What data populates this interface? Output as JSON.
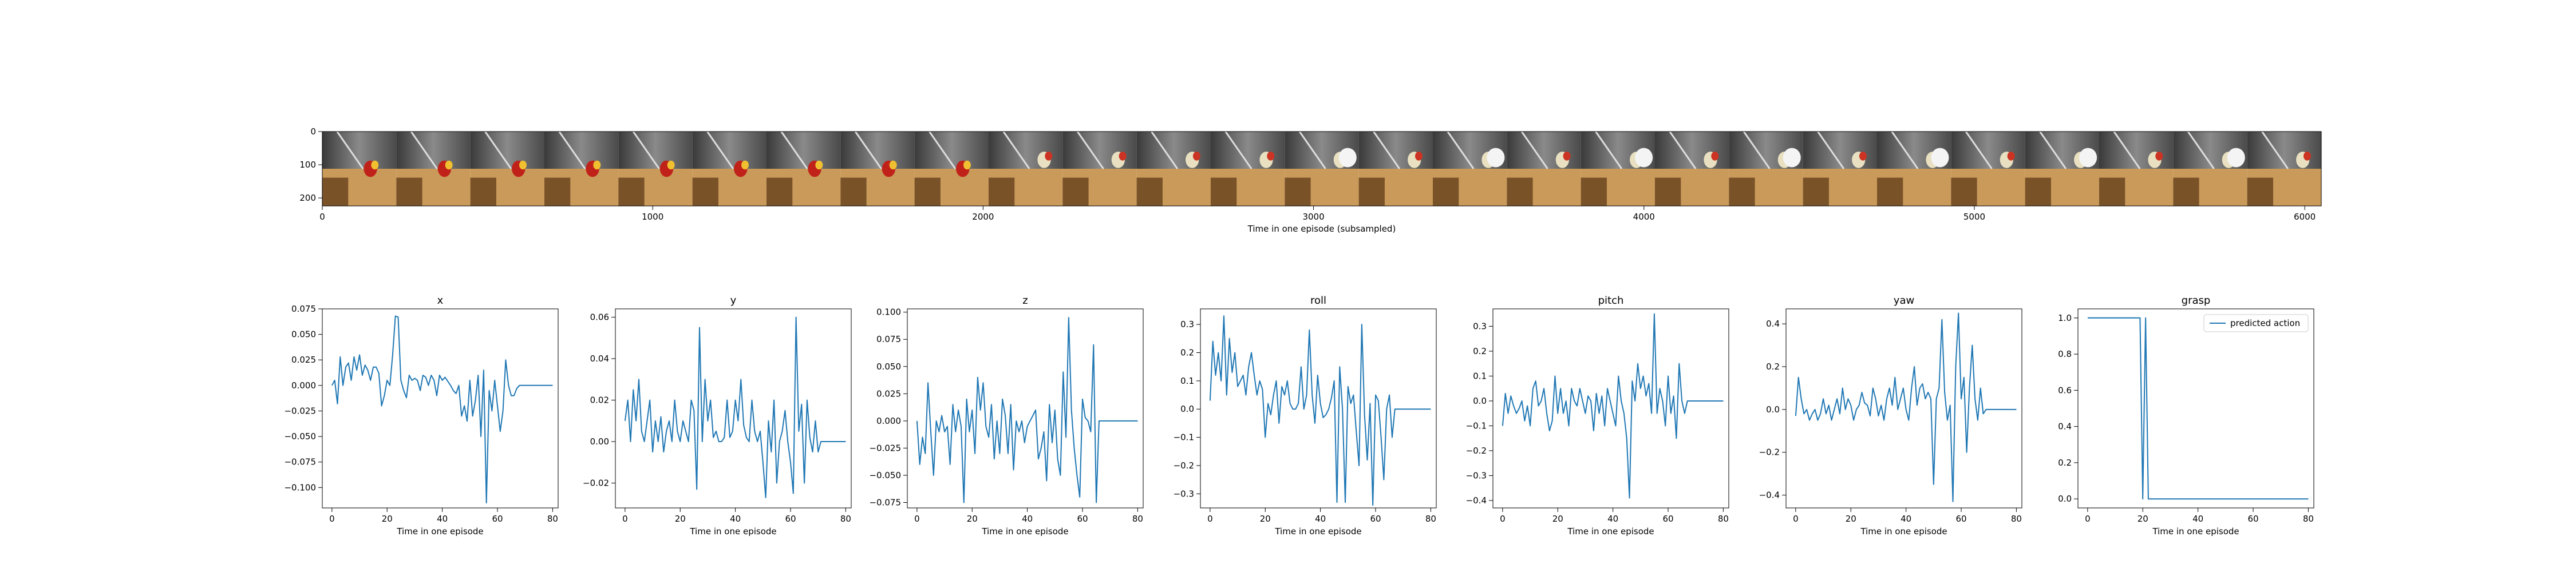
{
  "colors": {
    "line": "#1f77b4",
    "axis": "#000000",
    "background": "#ffffff"
  },
  "image_strip": {
    "xlabel": "Time in one episode (subsampled)",
    "x_ticks": [
      "0",
      "1000",
      "2000",
      "3000",
      "4000",
      "5000",
      "6000"
    ],
    "y_ticks": [
      "0",
      "100",
      "200"
    ],
    "xlim": [
      0,
      6050
    ],
    "ylim": [
      0,
      224
    ],
    "frame_count": 27,
    "frame_icon": "robot-tabletop-frame"
  },
  "chart_data": [
    {
      "type": "line",
      "title": "x",
      "xlabel": "Time in one episode",
      "ylabel": "",
      "xlim": [
        -3.5,
        82
      ],
      "ylim": [
        -0.12,
        0.075
      ],
      "x_ticks": [
        "0",
        "20",
        "40",
        "60",
        "80"
      ],
      "y_ticks": [
        "0.075",
        "0.050",
        "0.025",
        "0.000",
        "−0.025",
        "−0.050",
        "−0.075",
        "−0.100"
      ],
      "y_tick_values": [
        0.075,
        0.05,
        0.025,
        0,
        -0.025,
        -0.05,
        -0.075,
        -0.1
      ],
      "x": [
        0,
        1,
        2,
        3,
        4,
        5,
        6,
        7,
        8,
        9,
        10,
        11,
        12,
        13,
        14,
        15,
        16,
        17,
        18,
        19,
        20,
        21,
        22,
        23,
        24,
        25,
        26,
        27,
        28,
        29,
        30,
        31,
        32,
        33,
        34,
        35,
        36,
        37,
        38,
        39,
        40,
        41,
        42,
        43,
        44,
        45,
        46,
        47,
        48,
        49,
        50,
        51,
        52,
        53,
        54,
        55,
        56,
        57,
        58,
        59,
        60,
        61,
        62,
        63,
        64,
        65,
        66,
        67,
        68,
        69,
        70,
        71,
        72,
        73,
        74,
        75,
        76,
        77,
        78,
        79,
        80
      ],
      "values": [
        0,
        0.005,
        -0.018,
        0.028,
        0,
        0.018,
        0.022,
        0.005,
        0.028,
        0.015,
        0.03,
        0.01,
        0.02,
        0.015,
        0.005,
        0.018,
        0.018,
        0.012,
        -0.02,
        -0.01,
        0.005,
        0,
        0.03,
        0.068,
        0.067,
        0.005,
        -0.005,
        -0.012,
        0.01,
        0.005,
        0.007,
        0.005,
        -0.005,
        0.01,
        0.008,
        0,
        0.01,
        0.005,
        -0.01,
        0.01,
        0.005,
        0.008,
        0.004,
        0,
        -0.005,
        -0.008,
        0,
        -0.03,
        -0.02,
        -0.035,
        0.005,
        -0.03,
        -0.015,
        0.01,
        -0.05,
        0.015,
        -0.115,
        -0.005,
        -0.025,
        0.005,
        -0.02,
        -0.045,
        -0.025,
        0.025,
        0,
        -0.01,
        -0.01,
        -0.003,
        0,
        0,
        0,
        0,
        0,
        0,
        0,
        0,
        0,
        0,
        0,
        0,
        0
      ],
      "legend": null
    },
    {
      "type": "line",
      "title": "y",
      "xlabel": "Time in one episode",
      "ylabel": "",
      "xlim": [
        -3.5,
        82
      ],
      "ylim": [
        -0.032,
        0.064
      ],
      "x_ticks": [
        "0",
        "20",
        "40",
        "60",
        "80"
      ],
      "y_ticks": [
        "0.06",
        "0.04",
        "0.02",
        "0.00",
        "−0.02"
      ],
      "y_tick_values": [
        0.06,
        0.04,
        0.02,
        0,
        -0.02
      ],
      "x": [
        0,
        1,
        2,
        3,
        4,
        5,
        6,
        7,
        8,
        9,
        10,
        11,
        12,
        13,
        14,
        15,
        16,
        17,
        18,
        19,
        20,
        21,
        22,
        23,
        24,
        25,
        26,
        27,
        28,
        29,
        30,
        31,
        32,
        33,
        34,
        35,
        36,
        37,
        38,
        39,
        40,
        41,
        42,
        43,
        44,
        45,
        46,
        47,
        48,
        49,
        50,
        51,
        52,
        53,
        54,
        55,
        56,
        57,
        58,
        59,
        60,
        61,
        62,
        63,
        64,
        65,
        66,
        67,
        68,
        69,
        70,
        71,
        72,
        73,
        74,
        75,
        76,
        77,
        78,
        79,
        80
      ],
      "values": [
        0.01,
        0.02,
        0,
        0.025,
        0.01,
        0.03,
        0.005,
        0,
        0.01,
        0.02,
        -0.005,
        0.01,
        0,
        0.012,
        -0.005,
        0.005,
        0.01,
        0,
        0.02,
        0.005,
        0,
        0.01,
        0.005,
        0,
        0.02,
        0.015,
        -0.023,
        0.055,
        0,
        0.03,
        0.01,
        0.02,
        0.002,
        0.005,
        0,
        0,
        0.002,
        0.02,
        0.002,
        0.005,
        0.02,
        0.01,
        0.03,
        0.008,
        0.002,
        0,
        0.02,
        0.005,
        0,
        0.005,
        -0.01,
        -0.027,
        0.01,
        -0.005,
        0.02,
        -0.02,
        0,
        0.005,
        0.015,
        0,
        -0.01,
        -0.025,
        0.06,
        0.005,
        0.018,
        -0.02,
        0.02,
        0.002,
        -0.005,
        0.01,
        -0.005,
        0,
        0,
        0,
        0,
        0,
        0,
        0,
        0,
        0,
        0
      ],
      "legend": null
    },
    {
      "type": "line",
      "title": "z",
      "xlabel": "Time in one episode",
      "ylabel": "",
      "xlim": [
        -3.5,
        82
      ],
      "ylim": [
        -0.08,
        0.103
      ],
      "x_ticks": [
        "0",
        "20",
        "40",
        "60",
        "80"
      ],
      "y_ticks": [
        "0.100",
        "0.075",
        "0.050",
        "0.025",
        "0.000",
        "−0.025",
        "−0.050",
        "−0.075"
      ],
      "y_tick_values": [
        0.1,
        0.075,
        0.05,
        0.025,
        0,
        -0.025,
        -0.05,
        -0.075
      ],
      "x": [
        0,
        1,
        2,
        3,
        4,
        5,
        6,
        7,
        8,
        9,
        10,
        11,
        12,
        13,
        14,
        15,
        16,
        17,
        18,
        19,
        20,
        21,
        22,
        23,
        24,
        25,
        26,
        27,
        28,
        29,
        30,
        31,
        32,
        33,
        34,
        35,
        36,
        37,
        38,
        39,
        40,
        41,
        42,
        43,
        44,
        45,
        46,
        47,
        48,
        49,
        50,
        51,
        52,
        53,
        54,
        55,
        56,
        57,
        58,
        59,
        60,
        61,
        62,
        63,
        64,
        65,
        66,
        67,
        68,
        69,
        70,
        71,
        72,
        73,
        74,
        75,
        76,
        77,
        78,
        79,
        80
      ],
      "values": [
        0,
        -0.04,
        -0.015,
        -0.03,
        0.035,
        -0.01,
        -0.05,
        0,
        -0.01,
        0.005,
        -0.01,
        -0.005,
        -0.04,
        0.015,
        -0.01,
        0.01,
        -0.005,
        -0.075,
        0.02,
        -0.01,
        0.01,
        -0.03,
        0.04,
        0.01,
        0.035,
        -0.005,
        -0.015,
        0.015,
        -0.035,
        0,
        -0.03,
        0.02,
        0.005,
        -0.03,
        0.015,
        -0.045,
        0,
        -0.01,
        0,
        -0.02,
        -0.005,
        0,
        0.005,
        0.01,
        -0.035,
        -0.025,
        -0.01,
        -0.055,
        0.015,
        -0.02,
        0.01,
        -0.035,
        -0.05,
        0.045,
        -0.015,
        0.095,
        0.01,
        -0.025,
        -0.05,
        -0.07,
        0.02,
        0.003,
        0,
        -0.01,
        0.07,
        -0.075,
        0,
        0,
        0,
        0,
        0,
        0,
        0,
        0,
        0,
        0,
        0,
        0,
        0,
        0,
        0
      ],
      "legend": null
    },
    {
      "type": "line",
      "title": "roll",
      "xlabel": "Time in one episode",
      "ylabel": "",
      "xlim": [
        -3.5,
        82
      ],
      "ylim": [
        -0.35,
        0.355
      ],
      "x_ticks": [
        "0",
        "20",
        "40",
        "60",
        "80"
      ],
      "y_ticks": [
        "0.3",
        "0.2",
        "0.1",
        "0.0",
        "−0.1",
        "−0.2",
        "−0.3"
      ],
      "y_tick_values": [
        0.3,
        0.2,
        0.1,
        0,
        -0.1,
        -0.2,
        -0.3
      ],
      "x": [
        0,
        1,
        2,
        3,
        4,
        5,
        6,
        7,
        8,
        9,
        10,
        11,
        12,
        13,
        14,
        15,
        16,
        17,
        18,
        19,
        20,
        21,
        22,
        23,
        24,
        25,
        26,
        27,
        28,
        29,
        30,
        31,
        32,
        33,
        34,
        35,
        36,
        37,
        38,
        39,
        40,
        41,
        42,
        43,
        44,
        45,
        46,
        47,
        48,
        49,
        50,
        51,
        52,
        53,
        54,
        55,
        56,
        57,
        58,
        59,
        60,
        61,
        62,
        63,
        64,
        65,
        66,
        67,
        68,
        69,
        70,
        71,
        72,
        73,
        74,
        75,
        76,
        77,
        78,
        79,
        80
      ],
      "values": [
        0.03,
        0.24,
        0.12,
        0.2,
        0.1,
        0.33,
        0.05,
        0.25,
        0.13,
        0.2,
        0.08,
        0.1,
        0.12,
        0.05,
        0.15,
        0.2,
        0.12,
        0.05,
        0.1,
        0.07,
        -0.1,
        0.02,
        -0.02,
        0.05,
        0.1,
        -0.05,
        0.08,
        0.05,
        0.1,
        0.02,
        0,
        0,
        0.02,
        0.15,
        0,
        0.05,
        0.28,
        0.05,
        -0.05,
        0.12,
        0.02,
        -0.03,
        -0.02,
        0,
        0.04,
        0.1,
        -0.33,
        0.15,
        0,
        -0.33,
        0.08,
        0.02,
        0.05,
        -0.08,
        -0.2,
        0.3,
        -0.02,
        -0.18,
        0.02,
        -0.34,
        0.05,
        0.03,
        -0.1,
        -0.25,
        0,
        0.05,
        -0.1,
        0,
        0,
        0,
        0,
        0,
        0,
        0,
        0,
        0,
        0,
        0,
        0,
        0,
        0
      ],
      "legend": null
    },
    {
      "type": "line",
      "title": "pitch",
      "xlabel": "Time in one episode",
      "ylabel": "",
      "xlim": [
        -3.5,
        82
      ],
      "ylim": [
        -0.43,
        0.37
      ],
      "x_ticks": [
        "0",
        "20",
        "40",
        "60",
        "80"
      ],
      "y_ticks": [
        "0.3",
        "0.2",
        "0.1",
        "0.0",
        "−0.1",
        "−0.2",
        "−0.3",
        "−0.4"
      ],
      "y_tick_values": [
        0.3,
        0.2,
        0.1,
        0,
        -0.1,
        -0.2,
        -0.3,
        -0.4
      ],
      "x": [
        0,
        1,
        2,
        3,
        4,
        5,
        6,
        7,
        8,
        9,
        10,
        11,
        12,
        13,
        14,
        15,
        16,
        17,
        18,
        19,
        20,
        21,
        22,
        23,
        24,
        25,
        26,
        27,
        28,
        29,
        30,
        31,
        32,
        33,
        34,
        35,
        36,
        37,
        38,
        39,
        40,
        41,
        42,
        43,
        44,
        45,
        46,
        47,
        48,
        49,
        50,
        51,
        52,
        53,
        54,
        55,
        56,
        57,
        58,
        59,
        60,
        61,
        62,
        63,
        64,
        65,
        66,
        67,
        68,
        69,
        70,
        71,
        72,
        73,
        74,
        75,
        76,
        77,
        78,
        79,
        80
      ],
      "values": [
        -0.1,
        0.03,
        -0.05,
        0.02,
        -0.02,
        -0.05,
        -0.03,
        0,
        -0.08,
        -0.02,
        -0.1,
        0.05,
        0.08,
        -0.02,
        0,
        0.05,
        -0.05,
        -0.12,
        -0.08,
        0.1,
        -0.05,
        0.05,
        -0.05,
        0,
        -0.1,
        0.05,
        0,
        -0.02,
        0.05,
        0,
        -0.05,
        0.02,
        0,
        -0.12,
        0.03,
        -0.05,
        0.02,
        -0.1,
        0.05,
        0,
        -0.05,
        -0.1,
        0.1,
        0,
        -0.05,
        -0.15,
        -0.39,
        0.08,
        0,
        0.15,
        0.05,
        0.1,
        0.02,
        0.07,
        -0.05,
        0.35,
        -0.05,
        0.05,
        0,
        -0.1,
        0.1,
        -0.05,
        0.02,
        -0.15,
        0.15,
        0,
        -0.05,
        0,
        0,
        0,
        0,
        0,
        0,
        0,
        0,
        0,
        0,
        0,
        0,
        0,
        0
      ],
      "legend": null
    },
    {
      "type": "line",
      "title": "yaw",
      "xlabel": "Time in one episode",
      "ylabel": "",
      "xlim": [
        -3.5,
        82
      ],
      "ylim": [
        -0.46,
        0.47
      ],
      "x_ticks": [
        "0",
        "20",
        "40",
        "60",
        "80"
      ],
      "y_ticks": [
        "0.4",
        "0.2",
        "0.0",
        "−0.2",
        "−0.4"
      ],
      "y_tick_values": [
        0.4,
        0.2,
        0,
        -0.2,
        -0.4
      ],
      "x": [
        0,
        1,
        2,
        3,
        4,
        5,
        6,
        7,
        8,
        9,
        10,
        11,
        12,
        13,
        14,
        15,
        16,
        17,
        18,
        19,
        20,
        21,
        22,
        23,
        24,
        25,
        26,
        27,
        28,
        29,
        30,
        31,
        32,
        33,
        34,
        35,
        36,
        37,
        38,
        39,
        40,
        41,
        42,
        43,
        44,
        45,
        46,
        47,
        48,
        49,
        50,
        51,
        52,
        53,
        54,
        55,
        56,
        57,
        58,
        59,
        60,
        61,
        62,
        63,
        64,
        65,
        66,
        67,
        68,
        69,
        70,
        71,
        72,
        73,
        74,
        75,
        76,
        77,
        78,
        79,
        80
      ],
      "values": [
        -0.03,
        0.15,
        0.05,
        -0.02,
        0,
        -0.05,
        -0.02,
        0,
        -0.05,
        -0.02,
        0.05,
        -0.02,
        0.02,
        -0.05,
        0,
        0.05,
        -0.02,
        0.1,
        0,
        0.05,
        0.02,
        -0.05,
        0,
        0.02,
        0.08,
        0.03,
        0.02,
        -0.03,
        0.1,
        0.05,
        -0.03,
        0.02,
        -0.05,
        0.05,
        0.1,
        0.02,
        0.15,
        0,
        0.05,
        0.1,
        0,
        -0.05,
        0.1,
        0.2,
        0.02,
        0.1,
        0.12,
        0.05,
        0.08,
        0.05,
        -0.35,
        0.05,
        0.1,
        0.42,
        0.08,
        -0.05,
        0.02,
        -0.43,
        0.2,
        0.45,
        0.05,
        0.15,
        -0.2,
        0.1,
        0.3,
        0.05,
        -0.05,
        0.1,
        -0.02,
        0,
        0,
        0,
        0,
        0,
        0,
        0,
        0,
        0,
        0,
        0,
        0
      ],
      "legend": null
    },
    {
      "type": "line",
      "title": "grasp",
      "xlabel": "Time in one episode",
      "ylabel": "",
      "xlim": [
        -3.5,
        82
      ],
      "ylim": [
        -0.05,
        1.05
      ],
      "x_ticks": [
        "0",
        "20",
        "40",
        "60",
        "80"
      ],
      "y_ticks": [
        "1.0",
        "0.8",
        "0.6",
        "0.4",
        "0.2",
        "0.0"
      ],
      "y_tick_values": [
        1,
        0.8,
        0.6,
        0.4,
        0.2,
        0
      ],
      "x": [
        0,
        18,
        19,
        20,
        21,
        22,
        80
      ],
      "values": [
        1,
        1,
        1,
        0,
        1,
        0,
        0
      ],
      "legend": "predicted action"
    }
  ]
}
